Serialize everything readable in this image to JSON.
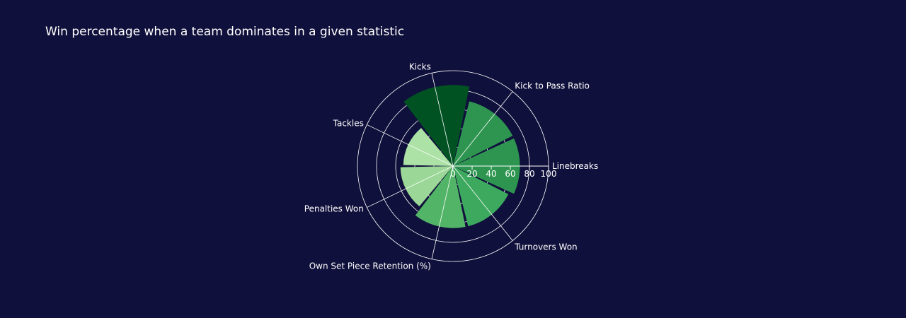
{
  "chart_data": {
    "type": "barpolar",
    "title": "Win percentage when a team dominates in a given statistic",
    "categories": [
      "Linebreaks",
      "Kick to Pass Ratio",
      "Kicks",
      "Tackles",
      "Penalties Won",
      "Own Set Piece Retention (%)",
      "Turnovers Won"
    ],
    "values": [
      70,
      70,
      85,
      52,
      55,
      65,
      65
    ],
    "radial_range": [
      0,
      100
    ],
    "radial_ticks": [
      "0",
      "20",
      "40",
      "60",
      "80",
      "100"
    ],
    "colors": [
      "#2e9550",
      "#2e9550",
      "#005222",
      "#ace2a6",
      "#9bd897",
      "#52b466",
      "#3da95e"
    ],
    "background": "#10103c"
  }
}
